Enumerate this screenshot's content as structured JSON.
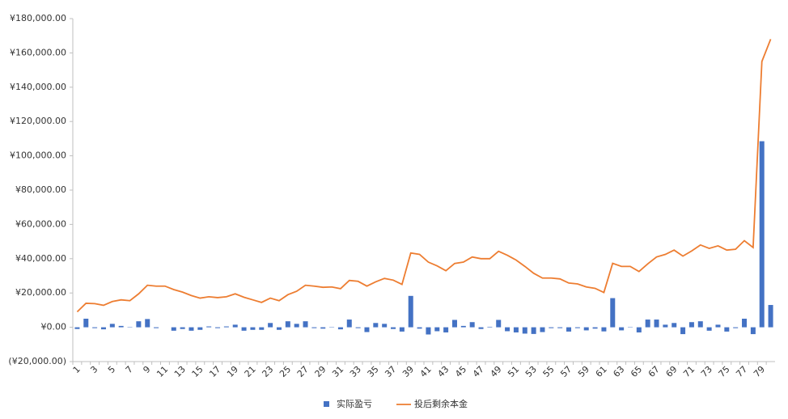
{
  "chart_data": {
    "type": "bar",
    "categories": [
      "1",
      null,
      "3",
      null,
      "5",
      null,
      "7",
      null,
      "9",
      null,
      "11",
      null,
      "13",
      null,
      "15",
      null,
      "17",
      null,
      "19",
      null,
      "21",
      null,
      "23",
      null,
      "25",
      null,
      "27",
      null,
      "29",
      null,
      "31",
      null,
      "33",
      null,
      "35",
      null,
      "37",
      null,
      "39",
      null,
      "41",
      null,
      "43",
      null,
      "45",
      null,
      "47",
      null,
      "49",
      null,
      "51",
      null,
      "53",
      null,
      "55",
      null,
      "57",
      null,
      "59",
      null,
      "61",
      null,
      "63",
      null,
      "65",
      null,
      "67",
      null,
      "69",
      null,
      "71",
      null,
      "73",
      null,
      "75",
      null,
      "77",
      null,
      "79",
      null
    ],
    "series": [
      {
        "name": "实际盈亏",
        "type": "bar",
        "color": "#4472c4",
        "values": [
          -1000,
          5000,
          -500,
          -1200,
          2000,
          800,
          200,
          3500,
          4800,
          -500,
          0,
          -2000,
          -1000,
          -2000,
          -1500,
          500,
          -500,
          500,
          1500,
          -2000,
          -1500,
          -1500,
          2500,
          -1500,
          3500,
          2000,
          3500,
          -500,
          -800,
          200,
          -1200,
          4500,
          -500,
          -2800,
          2500,
          2000,
          -1000,
          -2500,
          18300,
          -800,
          -4200,
          -2300,
          -3000,
          4300,
          800,
          3000,
          -1000,
          300,
          4300,
          -2300,
          -3000,
          -3700,
          -3900,
          -2800,
          -500,
          -500,
          -2500,
          -500,
          -1800,
          -800,
          -2400,
          17000,
          -1800,
          200,
          -3000,
          4500,
          4500,
          1500,
          2500,
          -4000,
          3000,
          3500,
          -2000,
          1500,
          -2500,
          -500,
          5000,
          -4000,
          108500,
          13000
        ]
      },
      {
        "name": "投后剩余本金",
        "type": "line",
        "color": "#ed7d31",
        "values": [
          9000,
          14000,
          13800,
          12800,
          15000,
          16000,
          15500,
          19500,
          24500,
          24000,
          24000,
          22000,
          20500,
          18500,
          17000,
          17800,
          17300,
          17800,
          19500,
          17500,
          16000,
          14500,
          17000,
          15500,
          19000,
          21000,
          24500,
          24000,
          23300,
          23500,
          22500,
          27300,
          26800,
          24000,
          26500,
          28500,
          27500,
          25000,
          43300,
          42500,
          38000,
          35800,
          33000,
          37200,
          38000,
          41000,
          40000,
          40000,
          44300,
          42000,
          39200,
          35500,
          31500,
          28700,
          28700,
          28200,
          25800,
          25300,
          23500,
          22700,
          20300,
          37300,
          35500,
          35500,
          32500,
          37000,
          41000,
          42500,
          45000,
          41500,
          44500,
          48000,
          46000,
          47500,
          45000,
          45500,
          50500,
          46500,
          155000,
          168000
        ]
      }
    ],
    "ylim": [
      -20000,
      180000
    ],
    "yticks": [
      {
        "value": -20000,
        "label": "(¥20,000.00)"
      },
      {
        "value": 0,
        "label": "¥0.00"
      },
      {
        "value": 20000,
        "label": "¥20,000.00"
      },
      {
        "value": 40000,
        "label": "¥40,000.00"
      },
      {
        "value": 60000,
        "label": "¥60,000.00"
      },
      {
        "value": 80000,
        "label": "¥80,000.00"
      },
      {
        "value": 100000,
        "label": "¥100,000.00"
      },
      {
        "value": 120000,
        "label": "¥120,000.00"
      },
      {
        "value": 140000,
        "label": "¥140,000.00"
      },
      {
        "value": 160000,
        "label": "¥160,000.00"
      },
      {
        "value": 180000,
        "label": "¥180,000.00"
      }
    ],
    "legend": "bottom"
  }
}
